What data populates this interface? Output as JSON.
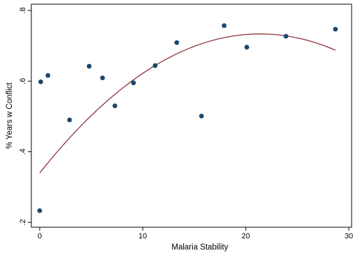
{
  "chart_data": {
    "type": "scatter",
    "title": "",
    "xlabel": "Malaria Stability",
    "ylabel": "% Years w Conflict",
    "xlim": [
      0,
      30
    ],
    "ylim": [
      0.2,
      0.8
    ],
    "xticks": [
      0,
      10,
      20,
      30
    ],
    "xtick_labels": [
      "0",
      "10",
      "20",
      "30"
    ],
    "yticks": [
      0.2,
      0.4,
      0.6,
      0.8
    ],
    "ytick_labels": [
      ".2",
      ".4",
      ".6",
      ".8"
    ],
    "grid": false,
    "points": [
      {
        "x": 0.0,
        "y": 0.233
      },
      {
        "x": 0.1,
        "y": 0.598
      },
      {
        "x": 0.8,
        "y": 0.616
      },
      {
        "x": 2.9,
        "y": 0.49
      },
      {
        "x": 4.8,
        "y": 0.642
      },
      {
        "x": 6.1,
        "y": 0.609
      },
      {
        "x": 7.3,
        "y": 0.53
      },
      {
        "x": 9.1,
        "y": 0.595
      },
      {
        "x": 11.2,
        "y": 0.644
      },
      {
        "x": 13.3,
        "y": 0.709
      },
      {
        "x": 15.7,
        "y": 0.501
      },
      {
        "x": 17.9,
        "y": 0.757
      },
      {
        "x": 20.1,
        "y": 0.696
      },
      {
        "x": 23.9,
        "y": 0.727
      },
      {
        "x": 28.7,
        "y": 0.747
      }
    ],
    "fit_line": {
      "type": "quadratic",
      "x_range": [
        0,
        28.7
      ],
      "coefficients": {
        "a": -0.0008611,
        "b": 0.03684,
        "c": 0.3395
      }
    },
    "colors": {
      "points": "#1a476f",
      "fit_line": "#90353b",
      "axis": "#000000"
    }
  }
}
